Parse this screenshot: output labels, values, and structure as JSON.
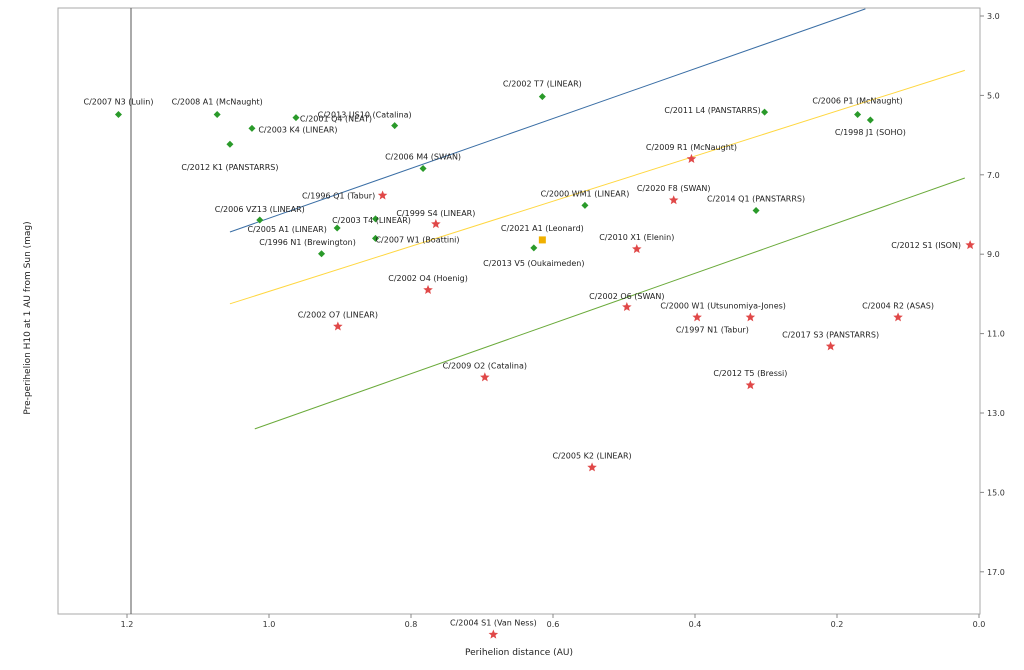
{
  "chart_data": {
    "type": "scatter",
    "title": "",
    "xlabel": "Perihelion distance (AU)",
    "ylabel": "Pre-perihelion H10 at 1 AU from Sun (mag)",
    "xlim": [
      1.3,
      0.0
    ],
    "ylim": [
      3.0,
      18.0
    ],
    "x_ticks": [
      "1.2",
      "1.0",
      "0.8",
      "0.6",
      "0.4",
      "0.2",
      "0.0"
    ],
    "y_ticks": [
      "3.0",
      "5.0",
      "7.0",
      "9.0",
      "11.0",
      "13.0",
      "15.0",
      "17.0"
    ],
    "x_axis_position": "bottom",
    "y_axis_position": "right",
    "grid": false,
    "legend": "none",
    "colors": {
      "bright": "#2a9a2a",
      "faint": "#e04848",
      "special": "#f0b000",
      "line_blue": "#3a6ea5",
      "line_yellow": "#ffd740",
      "line_green": "#6aaa3a"
    },
    "points": [
      {
        "label": "C/2007 N3 (Lulin)",
        "x": 1.212,
        "y": 5.48,
        "marker": "diamond",
        "color": "bright"
      },
      {
        "label": "C/2008 A1 (McNaught)",
        "x": 1.073,
        "y": 5.48,
        "marker": "diamond",
        "color": "bright"
      },
      {
        "label": "C/2001 Q4 (NEAT)",
        "x": 0.962,
        "y": 5.56,
        "marker": "diamond",
        "color": "bright"
      },
      {
        "label": "C/2013 US10 (Catalina)",
        "x": 0.823,
        "y": 5.76,
        "marker": "diamond",
        "color": "bright"
      },
      {
        "label": "C/2003 K4 (LINEAR)",
        "x": 1.024,
        "y": 5.83,
        "marker": "diamond",
        "color": "bright"
      },
      {
        "label": "C/2012 K1 (PANSTARRS)",
        "x": 1.055,
        "y": 6.23,
        "marker": "diamond",
        "color": "bright"
      },
      {
        "label": "C/2002 T7 (LINEAR)",
        "x": 0.615,
        "y": 5.03,
        "marker": "diamond",
        "color": "bright"
      },
      {
        "label": "C/2011 L4 (PANSTARRS)",
        "x": 0.302,
        "y": 5.42,
        "marker": "diamond",
        "color": "bright"
      },
      {
        "label": "C/2006 P1 (McNaught)",
        "x": 0.171,
        "y": 5.48,
        "marker": "diamond",
        "color": "bright"
      },
      {
        "label": "C/1998 J1 (SOHO)",
        "x": 0.153,
        "y": 5.62,
        "marker": "diamond",
        "color": "bright"
      },
      {
        "label": "C/2006 M4 (SWAN)",
        "x": 0.783,
        "y": 6.84,
        "marker": "diamond",
        "color": "bright"
      },
      {
        "label": "C/2000 WM1 (LINEAR)",
        "x": 0.555,
        "y": 7.77,
        "marker": "diamond",
        "color": "bright"
      },
      {
        "label": "C/2014 Q1 (PANSTARRS)",
        "x": 0.314,
        "y": 7.9,
        "marker": "diamond",
        "color": "bright"
      },
      {
        "label": "C/2006 VZ13 (LINEAR)",
        "x": 1.013,
        "y": 8.14,
        "marker": "diamond",
        "color": "bright"
      },
      {
        "label": "C/2003 T4 (LINEAR)",
        "x": 0.85,
        "y": 8.11,
        "marker": "diamond",
        "color": "bright"
      },
      {
        "label": "C/2005 A1 (LINEAR)",
        "x": 0.904,
        "y": 8.34,
        "marker": "diamond",
        "color": "bright"
      },
      {
        "label": "C/2007 W1 (Boattini)",
        "x": 0.85,
        "y": 8.6,
        "marker": "diamond",
        "color": "bright"
      },
      {
        "label": "C/1996 N1 (Brewington)",
        "x": 0.926,
        "y": 8.99,
        "marker": "diamond",
        "color": "bright"
      },
      {
        "label": "C/2013 V5 (Oukaimeden)",
        "x": 0.627,
        "y": 8.84,
        "marker": "diamond",
        "color": "bright"
      },
      {
        "label": "C/2021 A1 (Leonard)",
        "x": 0.615,
        "y": 8.64,
        "marker": "square",
        "color": "special"
      },
      {
        "label": "C/1996 Q1 (Tabur)",
        "x": 0.84,
        "y": 7.52,
        "marker": "star",
        "color": "faint"
      },
      {
        "label": "C/1999 S4 (LINEAR)",
        "x": 0.765,
        "y": 8.24,
        "marker": "star",
        "color": "faint"
      },
      {
        "label": "C/2009 R1 (McNaught)",
        "x": 0.405,
        "y": 6.6,
        "marker": "star",
        "color": "faint"
      },
      {
        "label": "C/2020 F8 (SWAN)",
        "x": 0.43,
        "y": 7.64,
        "marker": "star",
        "color": "faint"
      },
      {
        "label": "C/2010 X1 (Elenin)",
        "x": 0.482,
        "y": 8.87,
        "marker": "star",
        "color": "faint"
      },
      {
        "label": "C/2012 S1 (ISON)",
        "x": 0.0125,
        "y": 8.77,
        "marker": "star",
        "color": "faint"
      },
      {
        "label": "C/2002 O4 (Hoenig)",
        "x": 0.776,
        "y": 9.9,
        "marker": "star",
        "color": "faint"
      },
      {
        "label": "C/2002 O7 (LINEAR)",
        "x": 0.903,
        "y": 10.82,
        "marker": "star",
        "color": "faint"
      },
      {
        "label": "C/2002 O6 (SWAN)",
        "x": 0.496,
        "y": 10.33,
        "marker": "star",
        "color": "faint"
      },
      {
        "label": "C/2000 W1 (Utsunomiya-Jones)",
        "x": 0.397,
        "y": 10.59,
        "marker": "star",
        "color": "faint"
      },
      {
        "label": "C/1997 N1 (Tabur)",
        "x": 0.322,
        "y": 10.59,
        "marker": "star",
        "color": "faint"
      },
      {
        "label": "C/2004 R2 (ASAS)",
        "x": 0.114,
        "y": 10.59,
        "marker": "star",
        "color": "faint"
      },
      {
        "label": "C/2017 S3 (PANSTARRS)",
        "x": 0.209,
        "y": 11.32,
        "marker": "star",
        "color": "faint"
      },
      {
        "label": "C/2009 O2 (Catalina)",
        "x": 0.696,
        "y": 12.1,
        "marker": "star",
        "color": "faint"
      },
      {
        "label": "C/2012 T5 (Bressi)",
        "x": 0.322,
        "y": 12.3,
        "marker": "star",
        "color": "faint"
      },
      {
        "label": "C/2005 K2 (LINEAR)",
        "x": 0.545,
        "y": 14.37,
        "marker": "star",
        "color": "faint"
      },
      {
        "label": "C/2004 S1 (Van Ness)",
        "x": 0.684,
        "y": 18.58,
        "marker": "star",
        "color": "faint"
      }
    ],
    "lines": [
      {
        "color": "line_blue",
        "x": [
          1.055,
          0.16
        ],
        "y": [
          8.44,
          2.82
        ]
      },
      {
        "color": "line_yellow",
        "x": [
          1.055,
          0.02
        ],
        "y": [
          10.25,
          4.37
        ]
      },
      {
        "color": "line_green",
        "x": [
          1.02,
          0.02
        ],
        "y": [
          13.4,
          7.08
        ]
      }
    ]
  }
}
